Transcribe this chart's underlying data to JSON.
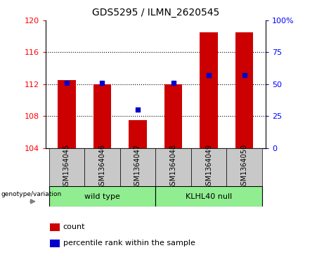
{
  "title": "GDS5295 / ILMN_2620545",
  "samples": [
    "GSM1364045",
    "GSM1364046",
    "GSM1364047",
    "GSM1364048",
    "GSM1364049",
    "GSM1364050"
  ],
  "count_values": [
    112.5,
    112.0,
    107.5,
    112.0,
    118.5,
    118.5
  ],
  "percentile_values": [
    51,
    51,
    30,
    51,
    57,
    57
  ],
  "ylim_left": [
    104,
    120
  ],
  "ylim_right": [
    0,
    100
  ],
  "yticks_left": [
    104,
    108,
    112,
    116,
    120
  ],
  "yticks_right": [
    0,
    25,
    50,
    75,
    100
  ],
  "ytick_labels_right": [
    "0",
    "25",
    "50",
    "75",
    "100%"
  ],
  "bar_bottom": 104,
  "bar_color": "#cc0000",
  "dot_color": "#0000cc",
  "wild_type_label": "wild type",
  "klhl40_label": "KLHL40 null",
  "genotype_label": "genotype/variation",
  "legend_count": "count",
  "legend_percentile": "percentile rank within the sample",
  "group_color": "#90ee90",
  "tick_area_color": "#c8c8c8",
  "bar_width": 0.5,
  "dot_size": 20,
  "fig_width": 4.61,
  "fig_height": 3.63
}
